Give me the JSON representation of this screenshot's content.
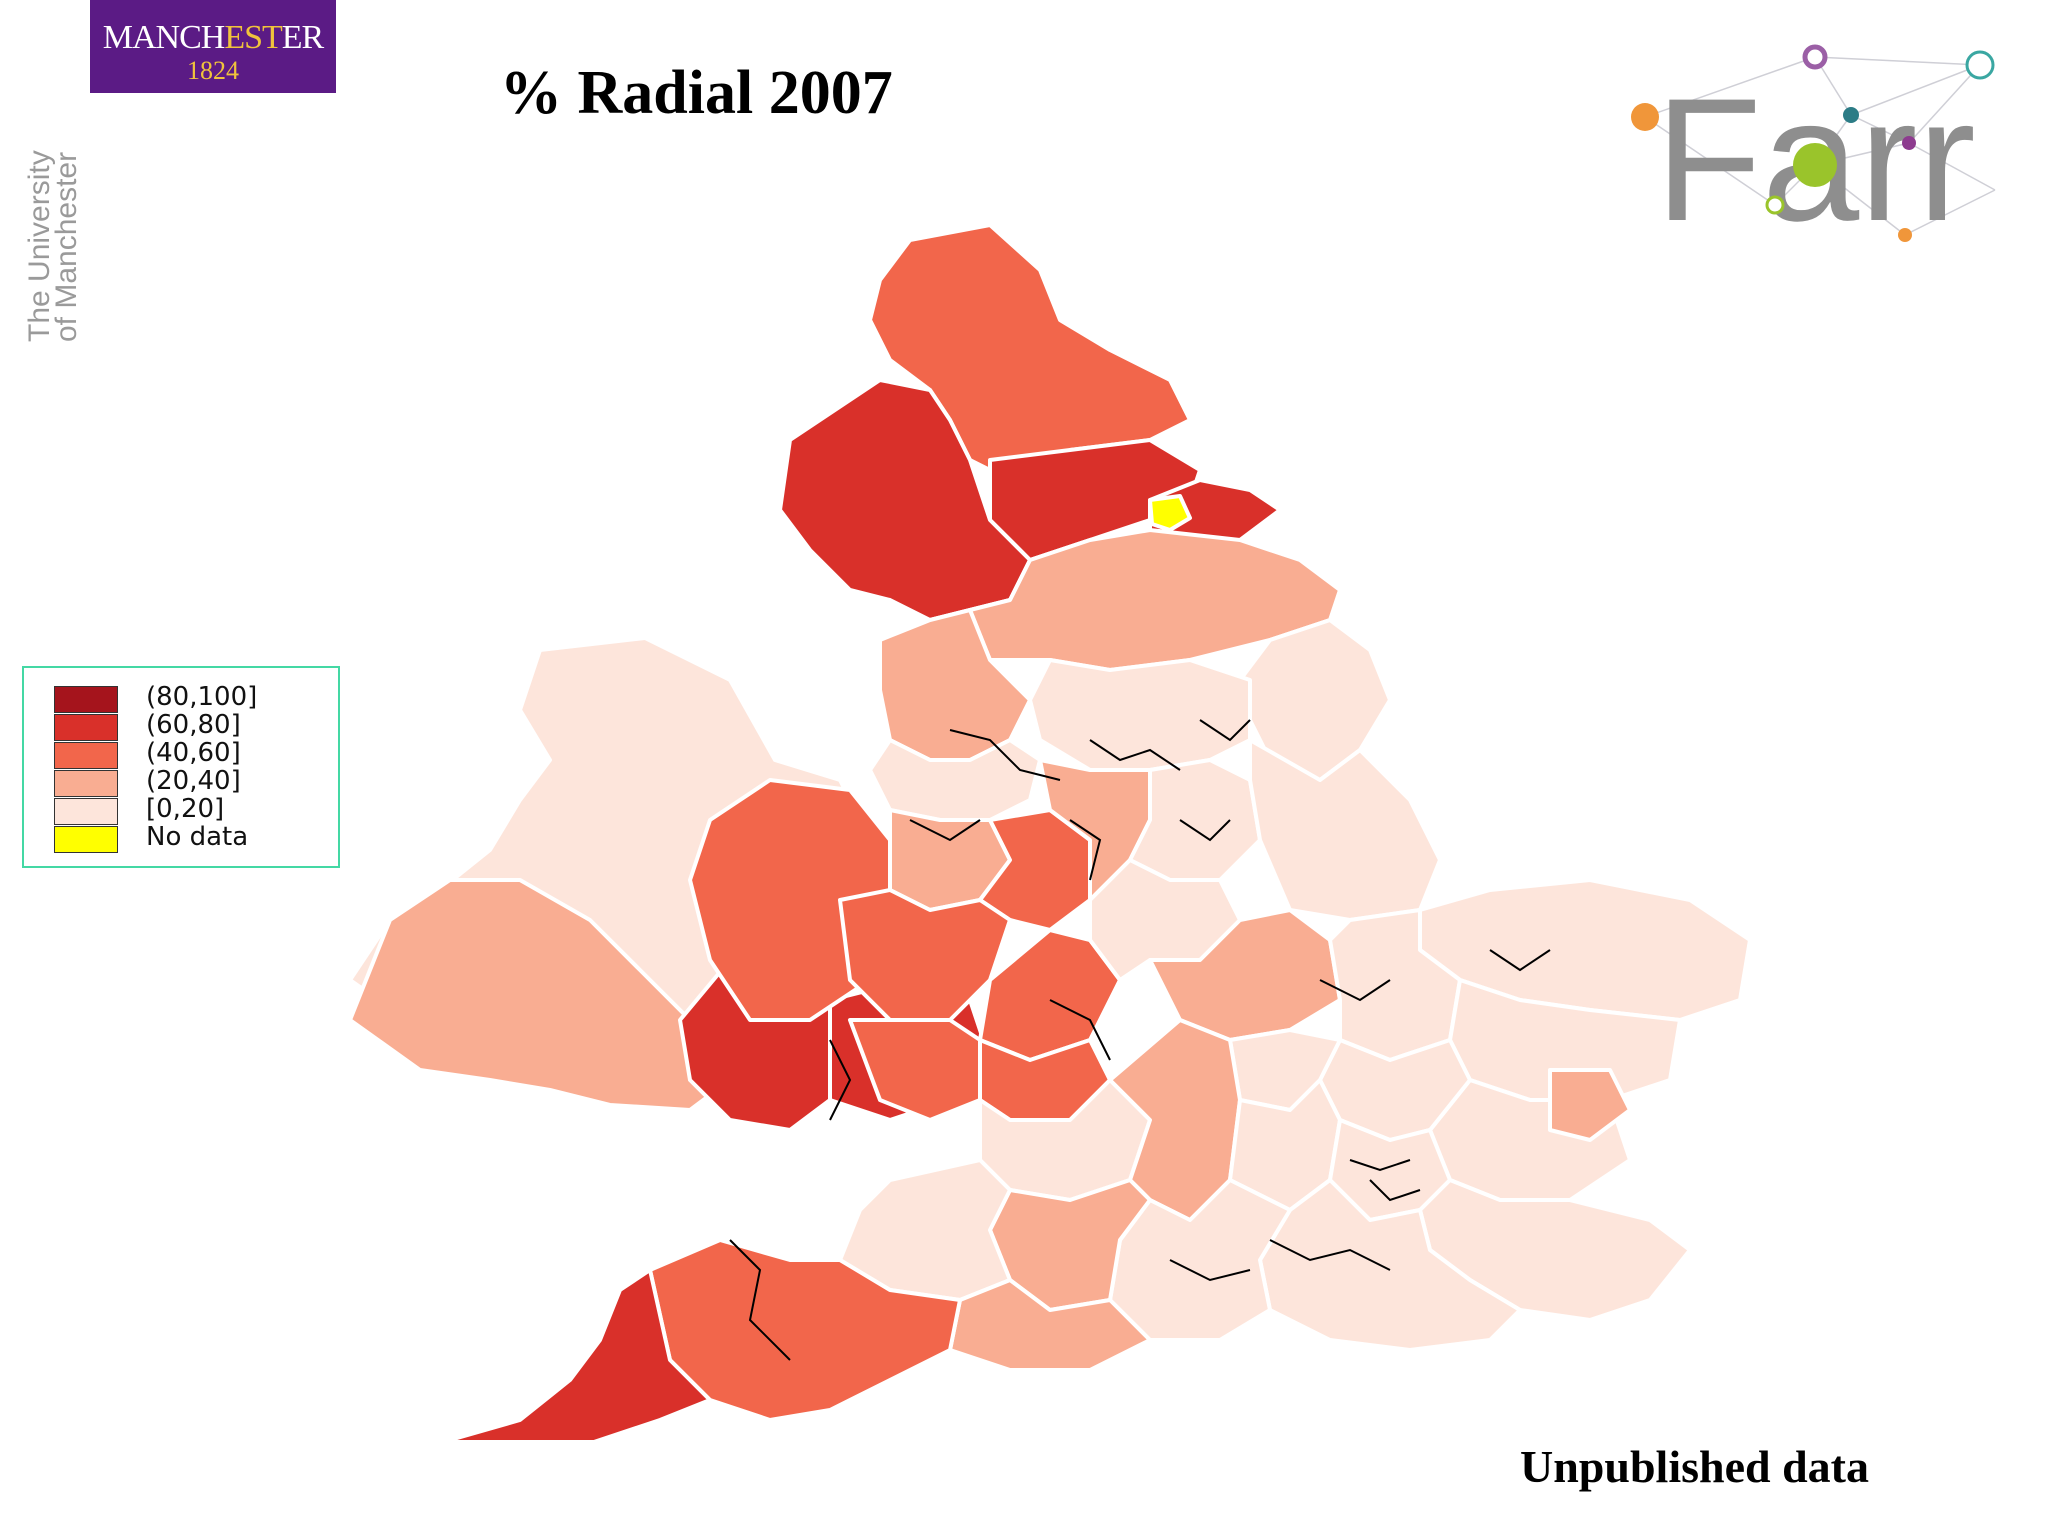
{
  "title": "% Radial 2007",
  "footer_note": "Unpublished data",
  "logos": {
    "university": {
      "name_part1": "MANCH",
      "name_part2": "EST",
      "name_part3": "ER",
      "year": "1824",
      "side_text_line1": "The University",
      "side_text_line2": "of Manchester"
    },
    "farr": {
      "text": "Farr"
    }
  },
  "legend": {
    "items": [
      {
        "label": "(80,100]",
        "color": "#a5141c"
      },
      {
        "label": "(60,80]",
        "color": "#d9302a"
      },
      {
        "label": "(40,60]",
        "color": "#f2664b"
      },
      {
        "label": "(20,40]",
        "color": "#f9ad92"
      },
      {
        "label": "[0,20]",
        "color": "#fde5db"
      },
      {
        "label": "No data",
        "color": "#ffff00"
      }
    ]
  },
  "map": {
    "colors": {
      "c80": "#a5141c",
      "c60": "#d9302a",
      "c40": "#f2664b",
      "c20": "#f9ad92",
      "c0": "#fde5db",
      "nodata": "#ffff00",
      "region_border": "#ffffff",
      "local_border": "#000000"
    }
  }
}
